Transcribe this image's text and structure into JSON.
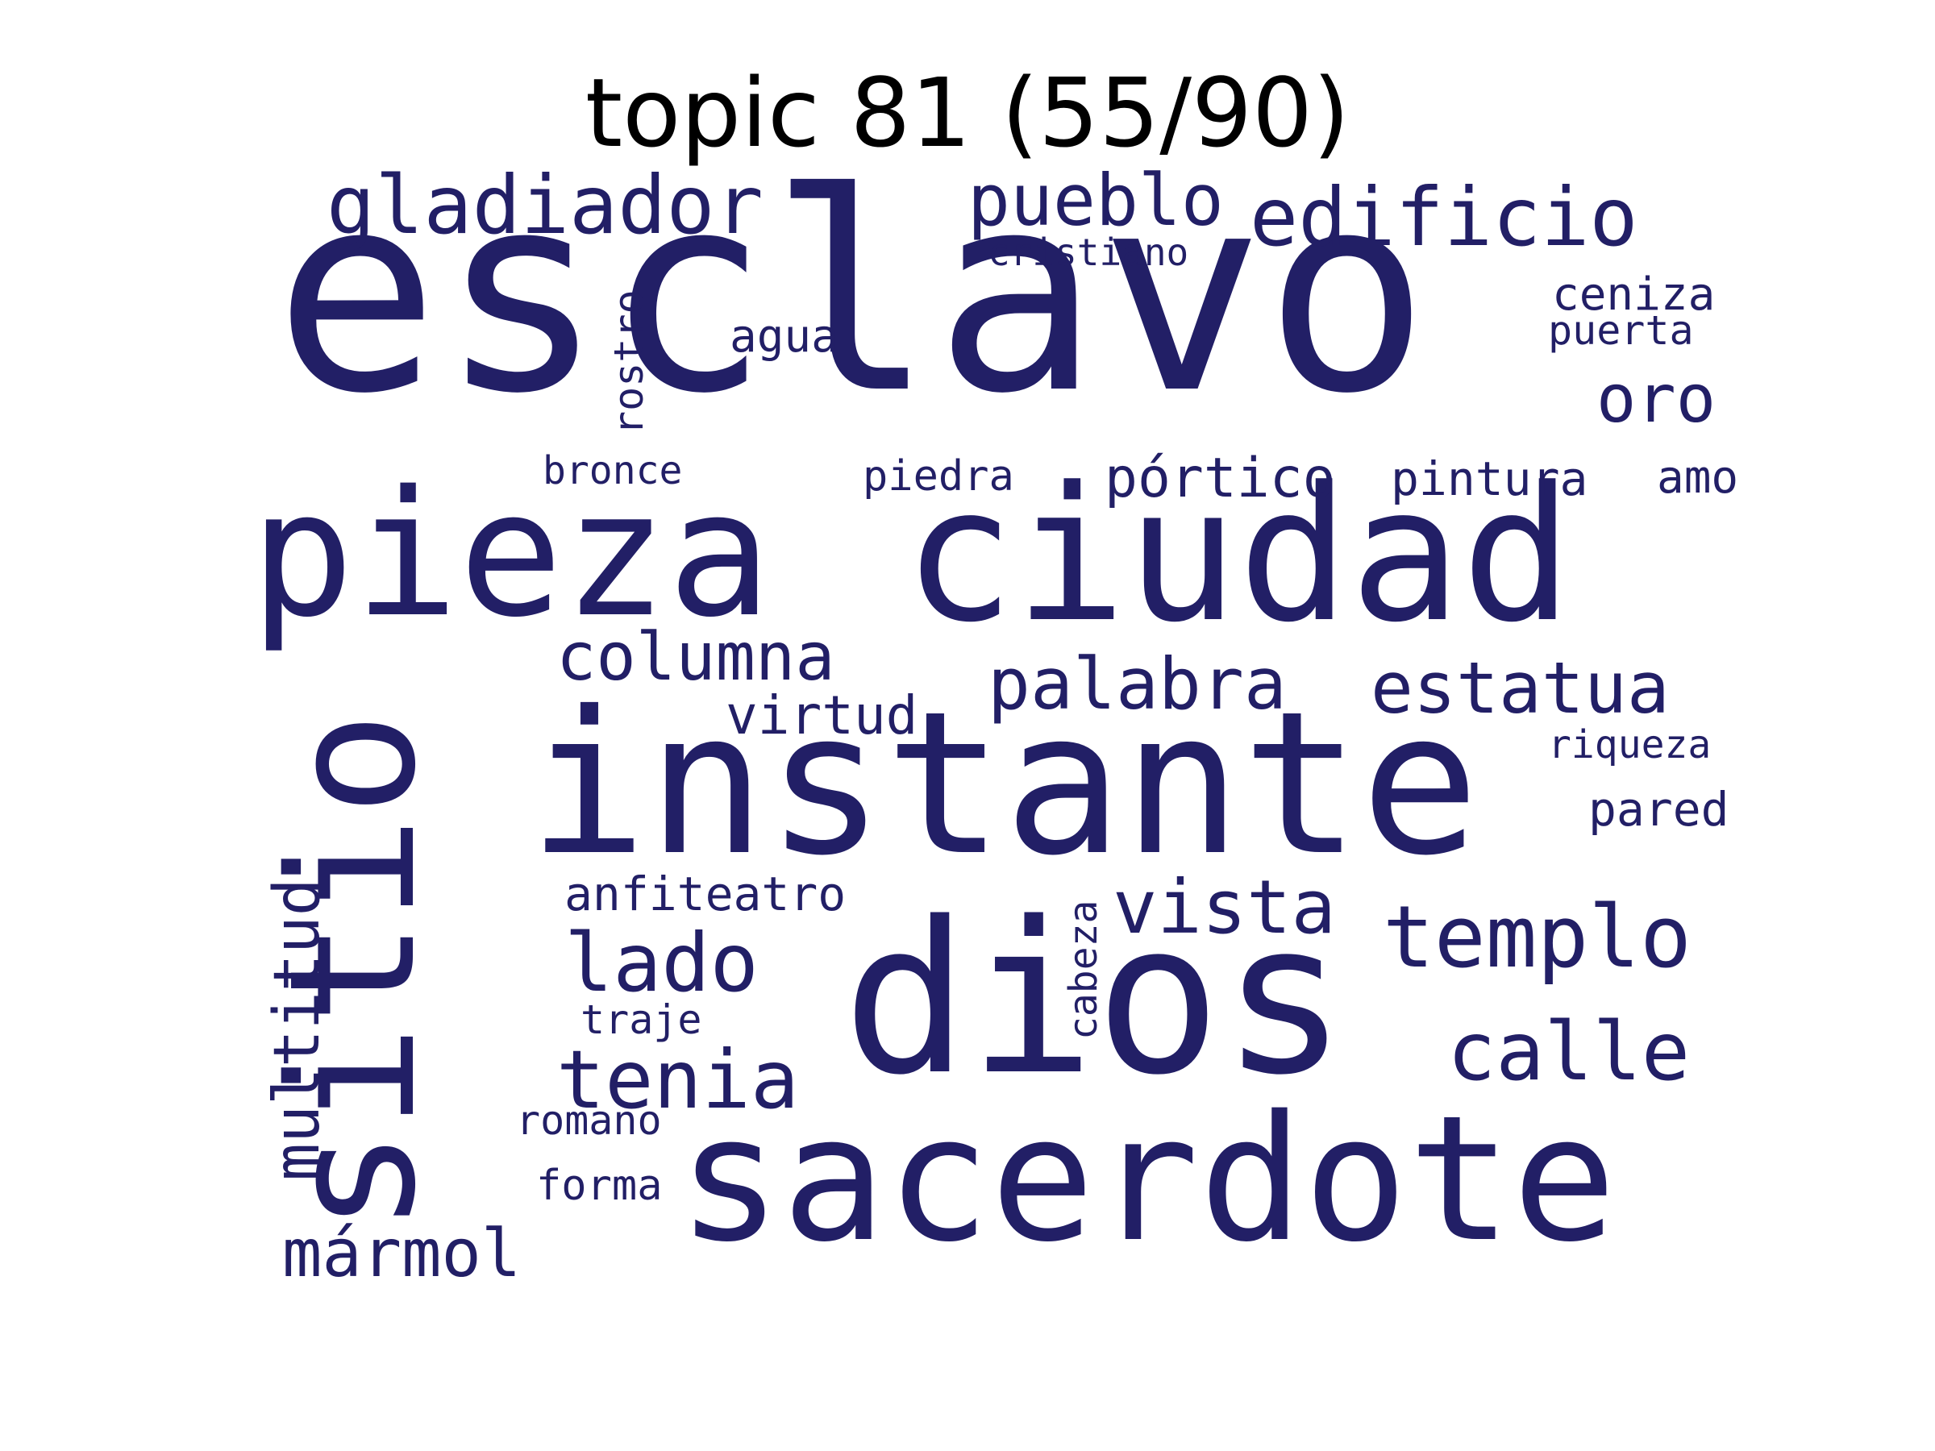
{
  "title": "topic 81 (55/90)",
  "colors": {
    "word": "#221f66",
    "title": "#000000",
    "background": "#ffffff"
  },
  "words": [
    "esclavo",
    "pieza",
    "ciudad",
    "instante",
    "sitio",
    "dios",
    "sacerdote",
    "gladiador",
    "pueblo",
    "edificio",
    "cristiano",
    "rostro",
    "ceniza",
    "puerta",
    "agua",
    "oro",
    "bronce",
    "piedra",
    "pórtico",
    "pintura",
    "amo",
    "columna",
    "palabra",
    "estatua",
    "virtud",
    "riqueza",
    "pared",
    "multitud",
    "anfiteatro",
    "vista",
    "templo",
    "lado",
    "cabeza",
    "calle",
    "traje",
    "tenia",
    "romano",
    "forma",
    "mármol"
  ]
}
